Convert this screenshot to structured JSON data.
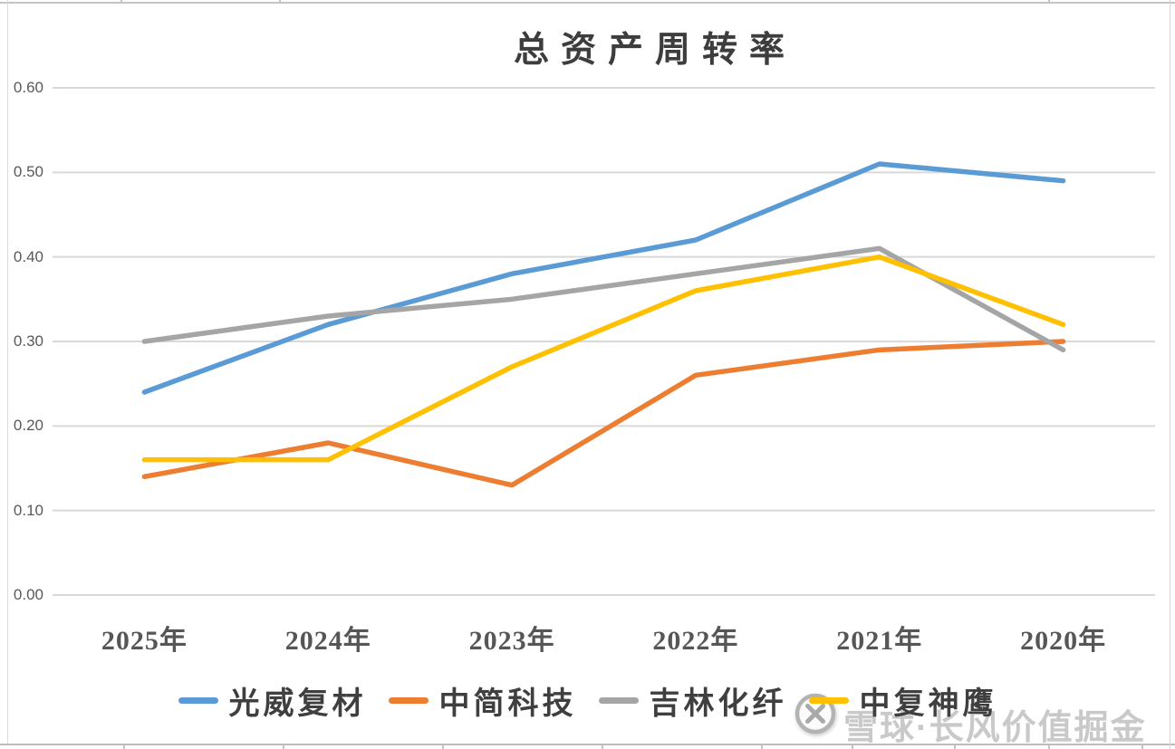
{
  "chart_data": {
    "type": "line",
    "title": "总资产周转率",
    "categories": [
      "2025年",
      "2024年",
      "2023年",
      "2022年",
      "2021年",
      "2020年"
    ],
    "series": [
      {
        "name": "光威复材",
        "color": "#5B9BD5",
        "values": [
          0.24,
          0.32,
          0.38,
          0.42,
          0.51,
          0.49
        ]
      },
      {
        "name": "中简科技",
        "color": "#ED7D31",
        "values": [
          0.14,
          0.18,
          0.13,
          0.26,
          0.29,
          0.3
        ]
      },
      {
        "name": "吉林化纤",
        "color": "#A5A5A5",
        "values": [
          0.3,
          0.33,
          0.35,
          0.38,
          0.41,
          0.29
        ]
      },
      {
        "name": "中复神鹰",
        "color": "#FFC000",
        "values": [
          0.16,
          0.16,
          0.27,
          0.36,
          0.4,
          0.32
        ]
      }
    ],
    "ylim": [
      0.0,
      0.6
    ],
    "ytick_step": 0.1,
    "ytick_labels": [
      "0.00",
      "0.10",
      "0.20",
      "0.30",
      "0.40",
      "0.50",
      "0.60"
    ],
    "grid": "horizontal",
    "gridline_color": "#D9D9D9",
    "legend_position": "bottom"
  },
  "watermark": {
    "logo_icon": "xueqiu-snowball-icon",
    "text": "雪球·长风价值掘金"
  }
}
